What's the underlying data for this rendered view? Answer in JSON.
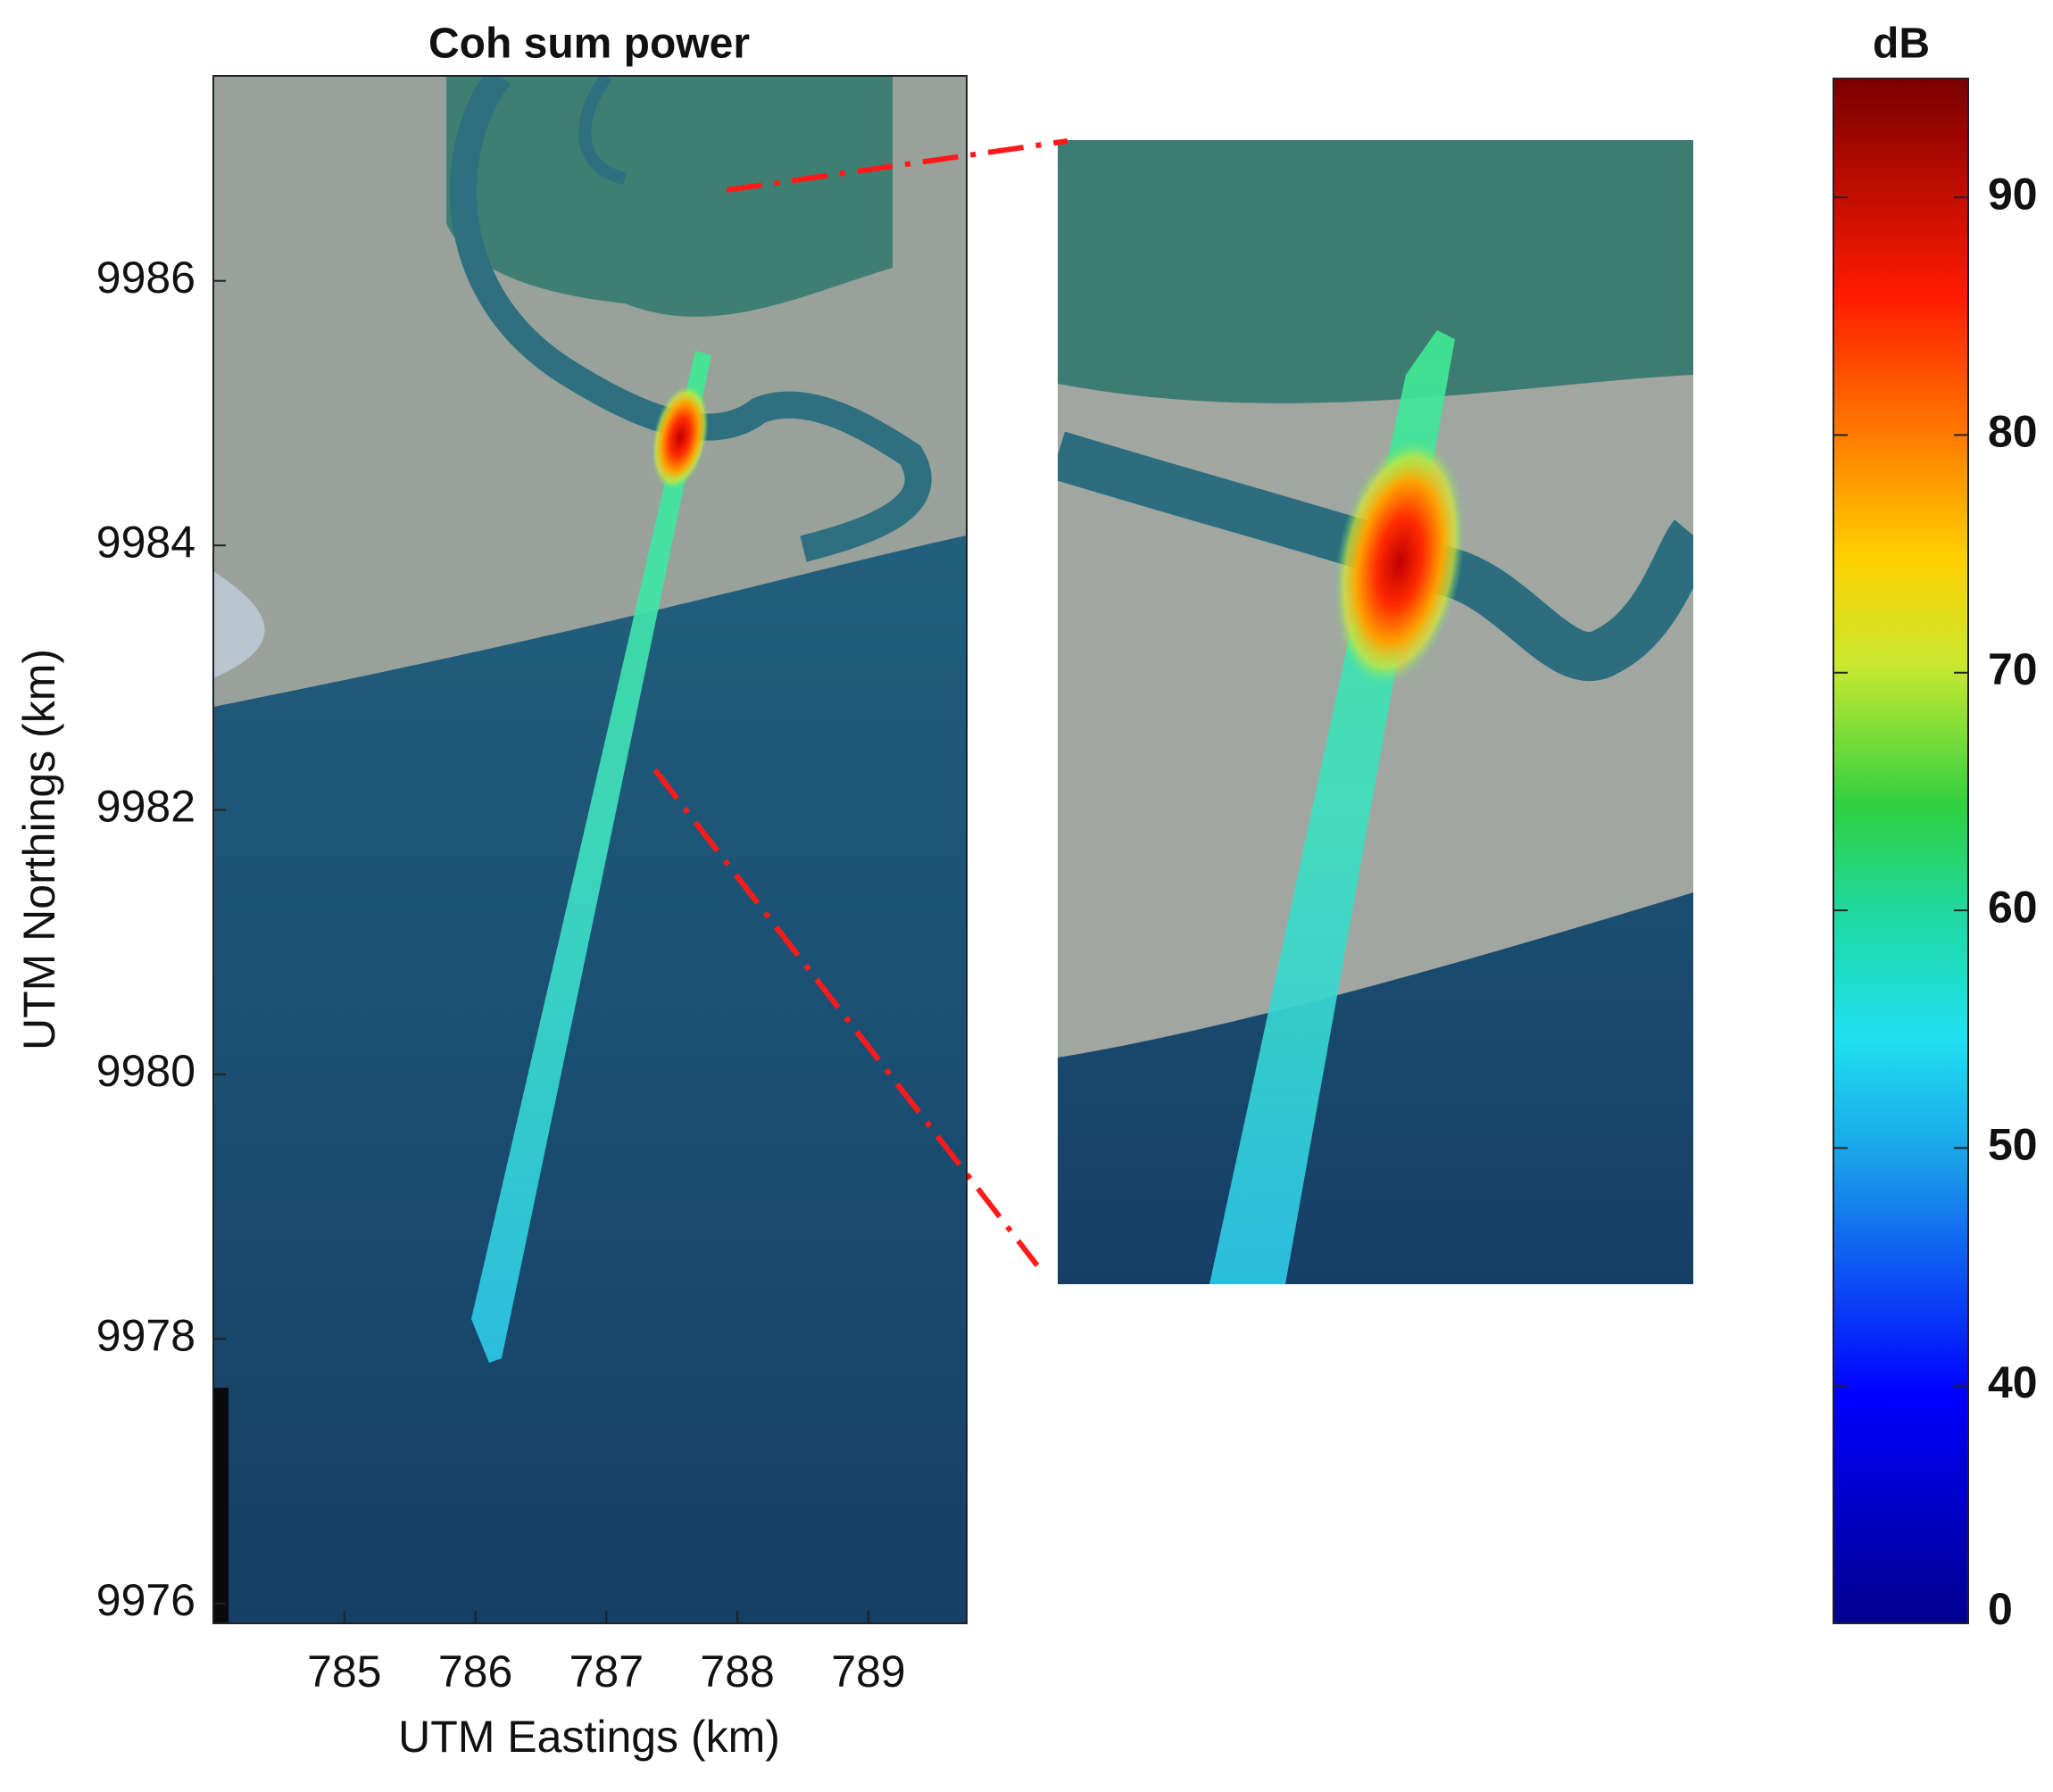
{
  "chart_data": {
    "type": "heatmap",
    "title": "Coh sum power",
    "x_label": "UTM Eastings (km)",
    "y_label": "UTM Northings (km)",
    "xlim": [
      784,
      789.75
    ],
    "ylim": [
      9975.85,
      9987.55
    ],
    "xticks": [
      785,
      786,
      787,
      788,
      789
    ],
    "yticks": [
      9976,
      9978,
      9980,
      9982,
      9984,
      9986
    ],
    "colorbar": {
      "title": "dB",
      "lim": [
        0,
        95
      ],
      "ticks": [
        0,
        40,
        50,
        60,
        70,
        80,
        90
      ]
    }
  }
}
